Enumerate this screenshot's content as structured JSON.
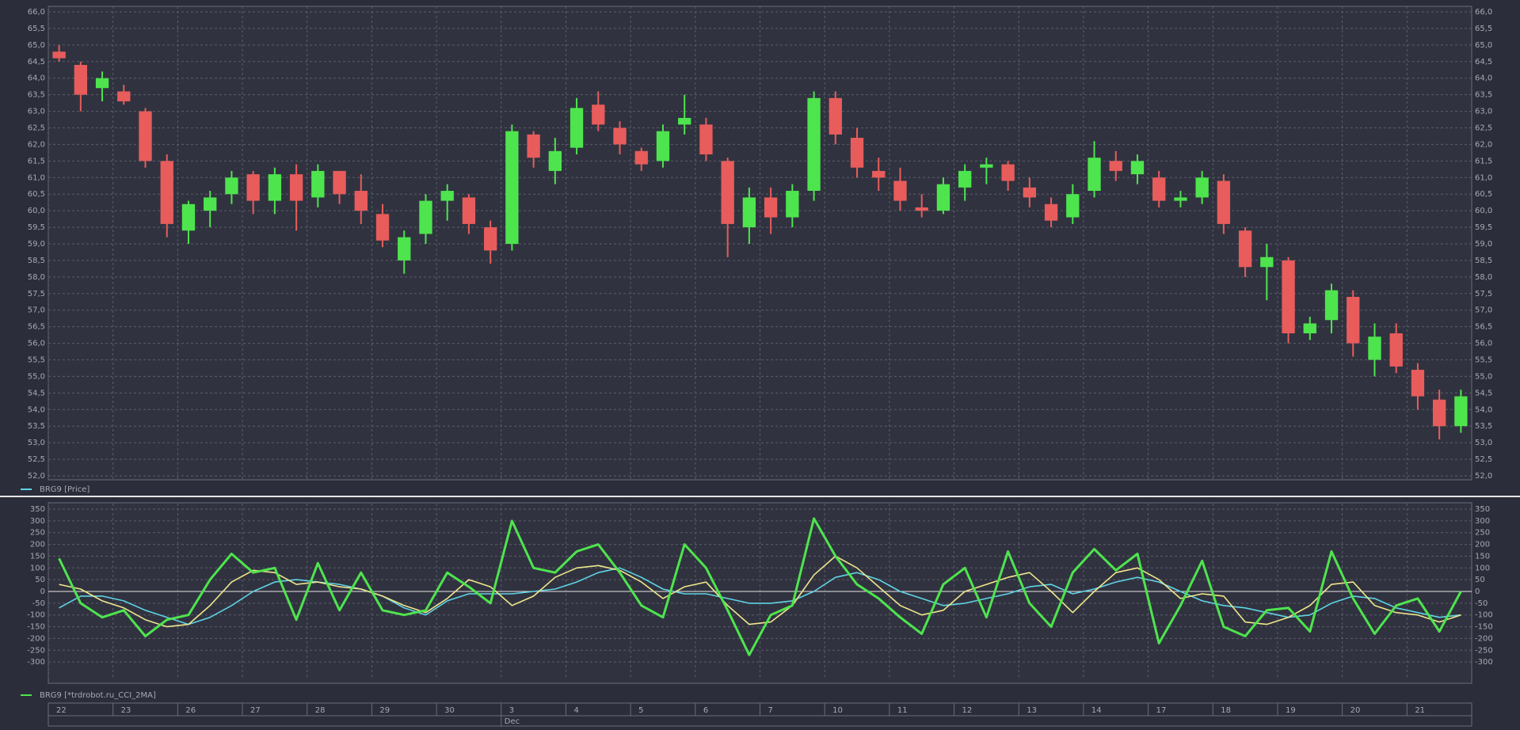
{
  "chart_data": [
    {
      "type": "candlestick",
      "legend": "BRG9 [Price]",
      "legend_color": "#5fd3e6",
      "up_color": "#4ee44e",
      "down_color": "#e85c5c",
      "open": [
        64.8,
        64.4,
        63.7,
        63.6,
        63.0,
        61.5,
        59.4,
        60.0,
        60.5,
        61.1,
        60.3,
        61.1,
        60.4,
        61.2,
        60.6,
        59.9,
        58.5,
        59.3,
        60.3,
        60.4,
        59.5,
        59.0,
        62.3,
        61.2,
        61.9,
        63.2,
        62.5,
        61.8,
        61.5,
        62.6,
        62.6,
        61.5,
        59.5,
        60.4,
        59.8,
        60.6,
        63.4,
        62.2,
        61.2,
        60.9,
        60.1,
        60.0,
        60.7,
        61.3,
        61.4,
        60.7,
        60.2,
        59.8,
        60.6,
        61.5,
        61.1,
        61.0,
        60.3,
        60.4,
        60.9,
        59.4,
        58.3,
        58.5,
        56.3,
        56.7,
        57.4,
        55.5,
        56.3,
        55.2,
        54.3,
        53.5
      ],
      "high": [
        65.0,
        64.5,
        64.2,
        63.8,
        63.1,
        61.7,
        60.3,
        60.6,
        61.2,
        61.2,
        61.3,
        61.4,
        61.4,
        61.2,
        61.1,
        60.2,
        59.4,
        60.5,
        60.8,
        60.5,
        59.7,
        62.6,
        62.4,
        62.2,
        63.4,
        63.6,
        62.7,
        61.9,
        62.6,
        63.5,
        62.8,
        61.6,
        60.7,
        60.7,
        60.8,
        63.6,
        63.6,
        62.5,
        61.6,
        61.3,
        60.5,
        61.0,
        61.4,
        61.6,
        61.5,
        61.0,
        60.4,
        60.8,
        62.1,
        61.8,
        61.7,
        61.2,
        60.6,
        61.2,
        61.1,
        59.5,
        59.0,
        58.6,
        56.8,
        57.8,
        57.6,
        56.6,
        56.6,
        55.4,
        54.6,
        54.6
      ],
      "low": [
        64.5,
        63.0,
        63.3,
        63.2,
        61.3,
        59.2,
        59.0,
        59.5,
        60.2,
        59.9,
        59.9,
        59.4,
        60.1,
        60.2,
        59.6,
        58.9,
        58.1,
        59.0,
        59.7,
        59.3,
        58.4,
        58.8,
        61.3,
        60.8,
        61.7,
        62.4,
        61.7,
        61.2,
        61.3,
        62.3,
        61.5,
        58.6,
        59.0,
        59.3,
        59.5,
        60.3,
        62.0,
        61.0,
        60.6,
        60.0,
        59.8,
        59.9,
        60.3,
        60.8,
        60.6,
        60.1,
        59.5,
        59.6,
        60.4,
        60.9,
        60.8,
        60.1,
        60.1,
        60.2,
        59.3,
        58.0,
        57.3,
        56.0,
        56.1,
        56.3,
        55.6,
        55.0,
        55.1,
        54.0,
        53.1,
        53.3
      ],
      "close": [
        64.6,
        63.5,
        64.0,
        63.3,
        61.5,
        59.6,
        60.2,
        60.4,
        61.0,
        60.3,
        61.1,
        60.3,
        61.2,
        60.5,
        60.0,
        59.1,
        59.2,
        60.3,
        60.6,
        59.6,
        58.8,
        62.4,
        61.6,
        61.8,
        63.1,
        62.6,
        62.0,
        61.4,
        62.4,
        62.8,
        61.7,
        59.6,
        60.4,
        59.8,
        60.6,
        63.4,
        62.3,
        61.3,
        61.0,
        60.3,
        60.0,
        60.8,
        61.2,
        61.4,
        60.9,
        60.4,
        59.7,
        60.5,
        61.6,
        61.2,
        61.5,
        60.3,
        60.4,
        61.0,
        59.6,
        58.3,
        58.6,
        56.3,
        56.6,
        57.6,
        56.0,
        56.2,
        55.3,
        54.4,
        53.5,
        54.4
      ],
      "ylim": [
        52,
        66
      ],
      "yticks": [
        {
          "value": 52,
          "label": "52,0"
        },
        {
          "value": 52.5,
          "label": "52,5"
        },
        {
          "value": 53,
          "label": "53,0"
        },
        {
          "value": 53.5,
          "label": "53,5"
        },
        {
          "value": 54,
          "label": "54,0"
        },
        {
          "value": 54.5,
          "label": "54,5"
        },
        {
          "value": 55,
          "label": "55,0"
        },
        {
          "value": 55.5,
          "label": "55,5"
        },
        {
          "value": 56,
          "label": "56,0"
        },
        {
          "value": 56.5,
          "label": "56,5"
        },
        {
          "value": 57,
          "label": "57,0"
        },
        {
          "value": 57.5,
          "label": "57,5"
        },
        {
          "value": 58,
          "label": "58,0"
        },
        {
          "value": 58.5,
          "label": "58,5"
        },
        {
          "value": 59,
          "label": "59,0"
        },
        {
          "value": 59.5,
          "label": "59,5"
        },
        {
          "value": 60,
          "label": "60,0"
        },
        {
          "value": 60.5,
          "label": "60,5"
        },
        {
          "value": 61,
          "label": "61,0"
        },
        {
          "value": 61.5,
          "label": "61,5"
        },
        {
          "value": 62,
          "label": "62,0"
        },
        {
          "value": 62.5,
          "label": "62,5"
        },
        {
          "value": 63,
          "label": "63,0"
        },
        {
          "value": 63.5,
          "label": "63,5"
        },
        {
          "value": 64,
          "label": "64,0"
        },
        {
          "value": 64.5,
          "label": "64,5"
        },
        {
          "value": 65,
          "label": "65,0"
        },
        {
          "value": 65.5,
          "label": "65,5"
        },
        {
          "value": 66,
          "label": "66,0"
        }
      ],
      "grid": true
    },
    {
      "type": "line",
      "legend": "BRG9 [*trdrobot.ru_CCI_2MA]",
      "legend_color": "#4ee44e",
      "categories": [
        "22",
        null,
        null,
        "23",
        null,
        null,
        "26",
        null,
        null,
        "27",
        null,
        null,
        "28",
        null,
        null,
        "29",
        null,
        null,
        "30",
        null,
        null,
        "3",
        null,
        null,
        "4",
        null,
        null,
        "5",
        null,
        null,
        "6",
        null,
        null,
        "7",
        null,
        null,
        "10",
        null,
        null,
        "11",
        null,
        null,
        "12",
        null,
        null,
        "13",
        null,
        null,
        "14",
        null,
        null,
        "17",
        null,
        null,
        "18",
        null,
        null,
        "19",
        null,
        null,
        "20",
        null,
        null,
        "21",
        null,
        null
      ],
      "months": [
        null,
        null,
        null,
        null,
        null,
        null,
        null,
        null,
        null,
        null,
        null,
        null,
        null,
        null,
        null,
        null,
        null,
        null,
        null,
        null,
        null,
        "Dec",
        null,
        null,
        null,
        null,
        null,
        null,
        null,
        null,
        null,
        null,
        null,
        null,
        null,
        null,
        null,
        null,
        null,
        null,
        null,
        null,
        null,
        null,
        null,
        null,
        null,
        null,
        null,
        null,
        null,
        null,
        null,
        null,
        null,
        null,
        null,
        null,
        null,
        null,
        null,
        null,
        null,
        null,
        null,
        null
      ],
      "series": [
        {
          "color": "#5fd3e6",
          "values": [
            -70,
            -20,
            -20,
            -40,
            -80,
            -110,
            -140,
            -110,
            -60,
            0,
            40,
            50,
            40,
            30,
            10,
            -20,
            -70,
            -100,
            -40,
            -10,
            -10,
            -10,
            0,
            10,
            40,
            80,
            100,
            60,
            10,
            -10,
            -10,
            -30,
            -50,
            -50,
            -40,
            0,
            60,
            80,
            50,
            0,
            -30,
            -60,
            -50,
            -30,
            -10,
            20,
            30,
            -10,
            10,
            40,
            60,
            40,
            0,
            -40,
            -60,
            -70,
            -90,
            -110,
            -100,
            -50,
            -20,
            -30,
            -70,
            -90,
            -110,
            -100
          ]
        },
        {
          "color": "#f0e68c",
          "values": [
            30,
            10,
            -40,
            -70,
            -120,
            -150,
            -140,
            -60,
            40,
            90,
            80,
            30,
            40,
            20,
            10,
            -20,
            -60,
            -90,
            -30,
            50,
            20,
            -60,
            -20,
            60,
            100,
            110,
            90,
            40,
            -30,
            20,
            40,
            -60,
            -140,
            -130,
            -60,
            70,
            150,
            100,
            20,
            -60,
            -100,
            -80,
            0,
            30,
            60,
            80,
            0,
            -90,
            0,
            80,
            100,
            50,
            -30,
            -10,
            -20,
            -130,
            -140,
            -110,
            -60,
            30,
            40,
            -60,
            -90,
            -100,
            -130,
            -100
          ]
        },
        {
          "color": "#4ee44e",
          "values": [
            140,
            -50,
            -110,
            -80,
            -190,
            -120,
            -100,
            50,
            160,
            80,
            100,
            -120,
            120,
            -80,
            80,
            -80,
            -100,
            -80,
            80,
            20,
            -50,
            300,
            100,
            80,
            170,
            200,
            80,
            -60,
            -110,
            200,
            100,
            -80,
            -270,
            -100,
            -60,
            310,
            150,
            30,
            -30,
            -110,
            -180,
            30,
            100,
            -110,
            170,
            -50,
            -150,
            80,
            180,
            90,
            160,
            -220,
            -60,
            130,
            -150,
            -190,
            -80,
            -70,
            -170,
            170,
            -30,
            -180,
            -60,
            -30,
            -170,
            0
          ]
        }
      ],
      "ylim": [
        -350,
        350
      ],
      "yticks": [
        -300,
        -250,
        -200,
        -150,
        -100,
        -50,
        0,
        50,
        100,
        150,
        200,
        250,
        300,
        350
      ],
      "zero_line": true,
      "grid": true
    }
  ]
}
